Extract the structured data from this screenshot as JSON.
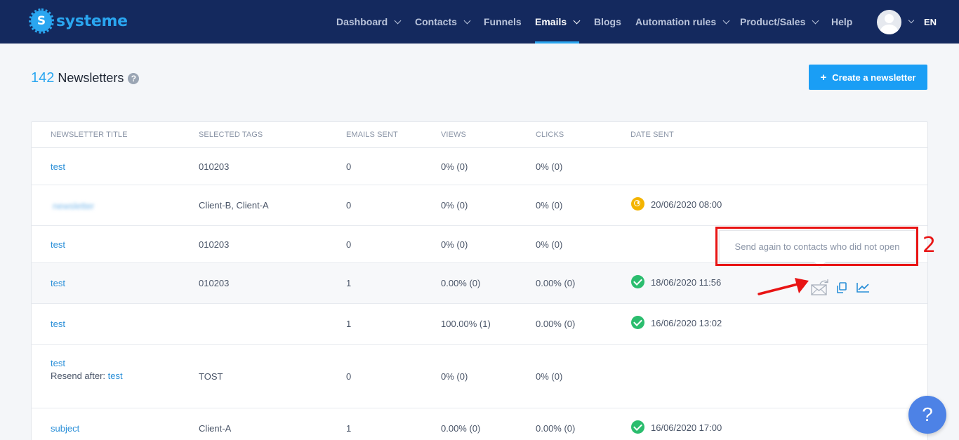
{
  "app": {
    "logo_text": "systeme",
    "logo_mark": "S"
  },
  "nav": {
    "items": [
      {
        "label": "Dashboard",
        "dropdown": true
      },
      {
        "label": "Contacts",
        "dropdown": true
      },
      {
        "label": "Funnels",
        "dropdown": false
      },
      {
        "label": "Emails",
        "dropdown": true,
        "active": true
      },
      {
        "label": "Blogs",
        "dropdown": false
      },
      {
        "label": "Automation rules",
        "dropdown": true
      },
      {
        "label": "Product/Sales",
        "dropdown": true
      },
      {
        "label": "Help",
        "dropdown": false
      }
    ],
    "language": "EN"
  },
  "header": {
    "count": "142",
    "title": "Newsletters",
    "help_glyph": "?",
    "create_label": "Create a newsletter"
  },
  "table": {
    "columns": [
      "NEWSLETTER TITLE",
      "SELECTED TAGS",
      "EMAILS SENT",
      "VIEWS",
      "CLICKS",
      "DATE SENT"
    ],
    "rows": [
      {
        "title": "test",
        "tags": "010203",
        "sent": "0",
        "views": "0% (0)",
        "clicks": "0% (0)",
        "date": "",
        "status": ""
      },
      {
        "title": "newsletter",
        "title_blurred": true,
        "tags": "Client-B, Client-A",
        "sent": "0",
        "views": "0% (0)",
        "clicks": "0% (0)",
        "date": "20/06/2020 08:00",
        "status": "scheduled"
      },
      {
        "title": "test",
        "tags": "010203",
        "sent": "0",
        "views": "0% (0)",
        "clicks": "0% (0)",
        "date": "",
        "status": ""
      },
      {
        "title": "test",
        "tags": "010203",
        "sent": "1",
        "views": "0.00% (0)",
        "clicks": "0.00% (0)",
        "date": "18/06/2020 11:56",
        "status": "sent",
        "hover": true
      },
      {
        "title": "test",
        "tags": "",
        "sent": "1",
        "views": "100.00% (1)",
        "clicks": "0.00% (0)",
        "date": "16/06/2020 13:02",
        "status": "sent"
      },
      {
        "title": "test",
        "resend_prefix": "Resend after:",
        "resend_link": "test",
        "tags": "TOST",
        "sent": "0",
        "views": "0% (0)",
        "clicks": "0% (0)",
        "date": "",
        "status": ""
      },
      {
        "title": "subject",
        "tags": "Client-A",
        "sent": "1",
        "views": "0.00% (0)",
        "clicks": "0.00% (0)",
        "date": "16/06/2020 17:00",
        "status": "sent"
      }
    ]
  },
  "tooltip": {
    "text": "Send again to contacts who did not open"
  },
  "annotation": {
    "step": "2",
    "color": "#e81414"
  },
  "help_fab": {
    "glyph": "?"
  },
  "colors": {
    "navbar": "#14295e",
    "accent": "#2aa6f0",
    "button": "#1a9ef5",
    "success": "#2bbd6e",
    "scheduled": "#f4b400"
  }
}
